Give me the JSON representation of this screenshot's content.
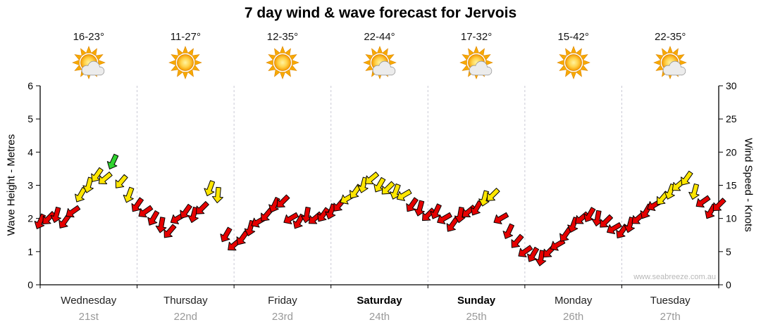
{
  "title": "7 day wind & wave forecast for Jervois",
  "days": [
    {
      "temp": "16-23°",
      "icon": "sun-cloud",
      "name": "Wednesday",
      "date": "21st",
      "weekend": false
    },
    {
      "temp": "11-27°",
      "icon": "sun",
      "name": "Thursday",
      "date": "22nd",
      "weekend": false
    },
    {
      "temp": "12-35°",
      "icon": "sun",
      "name": "Friday",
      "date": "23rd",
      "weekend": false
    },
    {
      "temp": "22-44°",
      "icon": "sun-cloud",
      "name": "Saturday",
      "date": "24th",
      "weekend": true
    },
    {
      "temp": "17-32°",
      "icon": "sun-cloud",
      "name": "Sunday",
      "date": "25th",
      "weekend": true
    },
    {
      "temp": "15-42°",
      "icon": "sun",
      "name": "Monday",
      "date": "26th",
      "weekend": false
    },
    {
      "temp": "22-35°",
      "icon": "sun-cloud",
      "name": "Tuesday",
      "date": "27th",
      "weekend": false
    }
  ],
  "chart_data": {
    "type": "wind-arrows",
    "title": "7 day wind & wave forecast for Jervois",
    "watermark": "www.seabreeze.com.au",
    "x_axis": {
      "unit": "hours-from-start",
      "range": [
        0,
        168
      ],
      "day_span_hours": 24,
      "day_dividers": true
    },
    "y_left": {
      "label": "Wave Height - Metres",
      "range": [
        0,
        6
      ],
      "ticks": [
        0,
        1,
        2,
        3,
        4,
        5,
        6
      ]
    },
    "y_right": {
      "label": "Wind Speed - Knots",
      "range": [
        0,
        30
      ],
      "ticks": [
        0,
        5,
        10,
        15,
        20,
        25,
        30
      ]
    },
    "color_map": {
      "r": "#e60000",
      "y": "#ffe600",
      "g": "#2fd42f"
    },
    "point_format": [
      "hour",
      "wind_knots",
      "direction_deg",
      "color"
    ],
    "note": "Arrows plot wind speed in knots (right axis); left axis reads wave-height metres at the same line positions.",
    "points": [
      [
        0,
        9.5,
        205,
        "r"
      ],
      [
        2,
        10,
        225,
        "r"
      ],
      [
        4,
        10.5,
        195,
        "r"
      ],
      [
        6,
        9.5,
        215,
        "r"
      ],
      [
        8,
        11,
        235,
        "r"
      ],
      [
        10,
        13.5,
        210,
        "y"
      ],
      [
        12,
        15,
        195,
        "y"
      ],
      [
        14,
        16.5,
        215,
        "y"
      ],
      [
        16,
        16,
        230,
        "y"
      ],
      [
        18,
        18.5,
        205,
        "g"
      ],
      [
        20,
        15.5,
        220,
        "y"
      ],
      [
        22,
        13.5,
        200,
        "y"
      ],
      [
        24,
        12,
        215,
        "r"
      ],
      [
        26,
        11,
        235,
        "r"
      ],
      [
        28,
        10,
        210,
        "r"
      ],
      [
        30,
        9,
        190,
        "r"
      ],
      [
        32,
        8,
        220,
        "r"
      ],
      [
        34,
        10,
        240,
        "r"
      ],
      [
        36,
        11,
        215,
        "r"
      ],
      [
        38,
        10.5,
        195,
        "r"
      ],
      [
        40,
        11.5,
        225,
        "r"
      ],
      [
        42,
        14.5,
        200,
        "y"
      ],
      [
        44,
        13.5,
        185,
        "y"
      ],
      [
        46,
        7.5,
        210,
        "r"
      ],
      [
        48,
        6,
        230,
        "r"
      ],
      [
        50,
        7,
        215,
        "r"
      ],
      [
        52,
        8.5,
        195,
        "r"
      ],
      [
        54,
        9.5,
        240,
        "r"
      ],
      [
        56,
        10.5,
        220,
        "r"
      ],
      [
        58,
        12,
        205,
        "r"
      ],
      [
        60,
        12.5,
        225,
        "r"
      ],
      [
        62,
        10,
        240,
        "r"
      ],
      [
        64,
        9.5,
        210,
        "r"
      ],
      [
        66,
        10.5,
        190,
        "r"
      ],
      [
        68,
        10,
        230,
        "r"
      ],
      [
        70,
        10.5,
        215,
        "r"
      ],
      [
        72,
        11,
        200,
        "r"
      ],
      [
        74,
        12,
        220,
        "r"
      ],
      [
        76,
        13,
        240,
        "y"
      ],
      [
        78,
        14,
        215,
        "y"
      ],
      [
        80,
        15,
        195,
        "y"
      ],
      [
        82,
        16,
        230,
        "y"
      ],
      [
        84,
        15,
        210,
        "y"
      ],
      [
        86,
        14.5,
        225,
        "y"
      ],
      [
        88,
        14,
        200,
        "y"
      ],
      [
        90,
        13.5,
        240,
        "y"
      ],
      [
        92,
        12,
        215,
        "r"
      ],
      [
        94,
        11.5,
        195,
        "r"
      ],
      [
        96,
        10.5,
        225,
        "r"
      ],
      [
        98,
        11,
        205,
        "r"
      ],
      [
        100,
        10,
        240,
        "r"
      ],
      [
        102,
        9,
        215,
        "r"
      ],
      [
        104,
        10.5,
        190,
        "r"
      ],
      [
        106,
        11,
        230,
        "r"
      ],
      [
        108,
        11.5,
        210,
        "r"
      ],
      [
        110,
        13,
        195,
        "y"
      ],
      [
        112,
        13.5,
        225,
        "y"
      ],
      [
        114,
        10,
        240,
        "r"
      ],
      [
        116,
        8,
        205,
        "r"
      ],
      [
        118,
        6.5,
        220,
        "r"
      ],
      [
        120,
        5,
        235,
        "r"
      ],
      [
        122,
        4.5,
        210,
        "r"
      ],
      [
        124,
        4,
        190,
        "r"
      ],
      [
        126,
        5,
        225,
        "r"
      ],
      [
        128,
        6,
        240,
        "r"
      ],
      [
        130,
        7.5,
        215,
        "r"
      ],
      [
        132,
        9,
        200,
        "r"
      ],
      [
        134,
        10,
        230,
        "r"
      ],
      [
        136,
        10.5,
        210,
        "r"
      ],
      [
        138,
        10,
        190,
        "r"
      ],
      [
        140,
        9.5,
        225,
        "r"
      ],
      [
        142,
        8.5,
        240,
        "r"
      ],
      [
        144,
        8,
        215,
        "r"
      ],
      [
        146,
        9,
        195,
        "r"
      ],
      [
        148,
        10,
        230,
        "r"
      ],
      [
        150,
        11,
        210,
        "r"
      ],
      [
        152,
        12,
        240,
        "r"
      ],
      [
        154,
        13,
        220,
        "y"
      ],
      [
        156,
        14,
        200,
        "y"
      ],
      [
        158,
        15,
        230,
        "y"
      ],
      [
        160,
        16,
        215,
        "y"
      ],
      [
        162,
        14,
        195,
        "y"
      ],
      [
        164,
        12.5,
        235,
        "r"
      ],
      [
        166,
        11,
        210,
        "r"
      ],
      [
        168,
        12,
        225,
        "r"
      ]
    ]
  }
}
